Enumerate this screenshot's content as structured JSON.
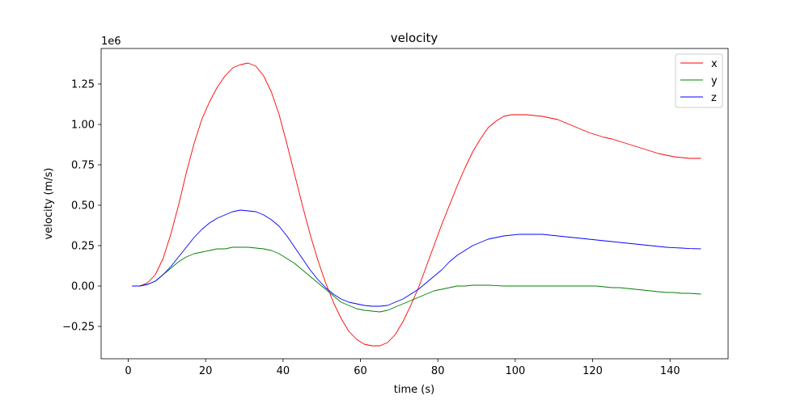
{
  "chart_data": {
    "type": "line",
    "title": "velocity",
    "xlabel": "time (s)",
    "ylabel": "velocity (m/s)",
    "y_offset_label": "1e6",
    "y_scale": 1000000,
    "xlim": [
      -7,
      155
    ],
    "ylim": [
      -0.45,
      1.47
    ],
    "x_ticks": [
      0,
      20,
      40,
      60,
      80,
      100,
      120,
      140
    ],
    "x_tick_labels": [
      "0",
      "20",
      "40",
      "60",
      "80",
      "100",
      "120",
      "140"
    ],
    "y_ticks": [
      -0.25,
      0.0,
      0.25,
      0.5,
      0.75,
      1.0,
      1.25
    ],
    "y_tick_labels": [
      "−0.25",
      "0.00",
      "0.25",
      "0.50",
      "0.75",
      "1.00",
      "1.25"
    ],
    "grid": false,
    "legend_position": "top-right",
    "series": [
      {
        "name": "x",
        "color": "#ff0000",
        "x": [
          1,
          3,
          5,
          7,
          9,
          11,
          13,
          15,
          17,
          19,
          21,
          23,
          25,
          27,
          29,
          31,
          33,
          35,
          37,
          39,
          41,
          43,
          45,
          47,
          49,
          51,
          53,
          55,
          57,
          59,
          61,
          63,
          65,
          67,
          69,
          71,
          73,
          75,
          77,
          79,
          81,
          83,
          85,
          87,
          89,
          91,
          93,
          95,
          97,
          99,
          101,
          103,
          105,
          107,
          109,
          111,
          113,
          115,
          117,
          119,
          121,
          123,
          125,
          127,
          129,
          131,
          133,
          135,
          137,
          139,
          141,
          143,
          145,
          148
        ],
        "y": [
          0.0,
          0.0,
          0.02,
          0.07,
          0.17,
          0.32,
          0.5,
          0.7,
          0.88,
          1.03,
          1.14,
          1.23,
          1.3,
          1.35,
          1.37,
          1.38,
          1.36,
          1.3,
          1.2,
          1.06,
          0.88,
          0.69,
          0.5,
          0.32,
          0.16,
          0.02,
          -0.1,
          -0.2,
          -0.28,
          -0.33,
          -0.36,
          -0.37,
          -0.37,
          -0.35,
          -0.3,
          -0.22,
          -0.12,
          -0.01,
          0.12,
          0.25,
          0.38,
          0.5,
          0.62,
          0.73,
          0.83,
          0.91,
          0.98,
          1.02,
          1.05,
          1.06,
          1.06,
          1.06,
          1.055,
          1.05,
          1.04,
          1.03,
          1.01,
          0.99,
          0.97,
          0.95,
          0.935,
          0.92,
          0.91,
          0.895,
          0.88,
          0.865,
          0.85,
          0.835,
          0.82,
          0.81,
          0.8,
          0.795,
          0.79,
          0.79
        ]
      },
      {
        "name": "y",
        "color": "#008000",
        "x": [
          1,
          3,
          5,
          7,
          9,
          11,
          13,
          15,
          17,
          19,
          21,
          23,
          25,
          27,
          29,
          31,
          33,
          35,
          37,
          39,
          41,
          43,
          45,
          47,
          49,
          51,
          53,
          55,
          57,
          59,
          61,
          63,
          65,
          67,
          69,
          71,
          73,
          75,
          77,
          79,
          81,
          83,
          85,
          87,
          89,
          91,
          93,
          95,
          97,
          99,
          101,
          103,
          105,
          107,
          109,
          111,
          113,
          115,
          117,
          119,
          121,
          123,
          125,
          127,
          129,
          131,
          133,
          135,
          137,
          139,
          141,
          143,
          145,
          148
        ],
        "y": [
          0.0,
          0.0,
          0.01,
          0.03,
          0.07,
          0.11,
          0.15,
          0.18,
          0.2,
          0.21,
          0.22,
          0.23,
          0.23,
          0.24,
          0.24,
          0.24,
          0.235,
          0.23,
          0.22,
          0.2,
          0.17,
          0.14,
          0.1,
          0.06,
          0.02,
          -0.02,
          -0.06,
          -0.1,
          -0.12,
          -0.14,
          -0.15,
          -0.155,
          -0.16,
          -0.15,
          -0.13,
          -0.11,
          -0.09,
          -0.07,
          -0.05,
          -0.03,
          -0.02,
          -0.01,
          0.0,
          0.0,
          0.005,
          0.005,
          0.005,
          0.003,
          0.0,
          0.0,
          0.0,
          0.0,
          0.0,
          0.0,
          0.0,
          0.0,
          0.0,
          0.0,
          0.0,
          0.0,
          0.0,
          -0.005,
          -0.01,
          -0.01,
          -0.015,
          -0.02,
          -0.025,
          -0.03,
          -0.035,
          -0.04,
          -0.04,
          -0.045,
          -0.045,
          -0.05
        ]
      },
      {
        "name": "z",
        "color": "#0000ff",
        "x": [
          1,
          3,
          5,
          7,
          9,
          11,
          13,
          15,
          17,
          19,
          21,
          23,
          25,
          27,
          29,
          31,
          33,
          35,
          37,
          39,
          41,
          43,
          45,
          47,
          49,
          51,
          53,
          55,
          57,
          59,
          61,
          63,
          65,
          67,
          69,
          71,
          73,
          75,
          77,
          79,
          81,
          83,
          85,
          87,
          89,
          91,
          93,
          95,
          97,
          99,
          101,
          103,
          105,
          107,
          109,
          111,
          113,
          115,
          117,
          119,
          121,
          123,
          125,
          127,
          129,
          131,
          133,
          135,
          137,
          139,
          141,
          143,
          145,
          148
        ],
        "y": [
          0.0,
          0.0,
          0.01,
          0.03,
          0.07,
          0.12,
          0.18,
          0.24,
          0.3,
          0.35,
          0.39,
          0.42,
          0.44,
          0.46,
          0.47,
          0.465,
          0.46,
          0.44,
          0.41,
          0.37,
          0.31,
          0.24,
          0.17,
          0.1,
          0.04,
          -0.01,
          -0.05,
          -0.08,
          -0.1,
          -0.11,
          -0.12,
          -0.125,
          -0.125,
          -0.12,
          -0.1,
          -0.08,
          -0.05,
          -0.02,
          0.02,
          0.06,
          0.1,
          0.15,
          0.19,
          0.22,
          0.25,
          0.27,
          0.29,
          0.3,
          0.31,
          0.315,
          0.32,
          0.32,
          0.32,
          0.32,
          0.315,
          0.31,
          0.305,
          0.3,
          0.295,
          0.29,
          0.285,
          0.28,
          0.275,
          0.27,
          0.265,
          0.26,
          0.255,
          0.25,
          0.245,
          0.24,
          0.237,
          0.235,
          0.232,
          0.23
        ]
      }
    ]
  }
}
